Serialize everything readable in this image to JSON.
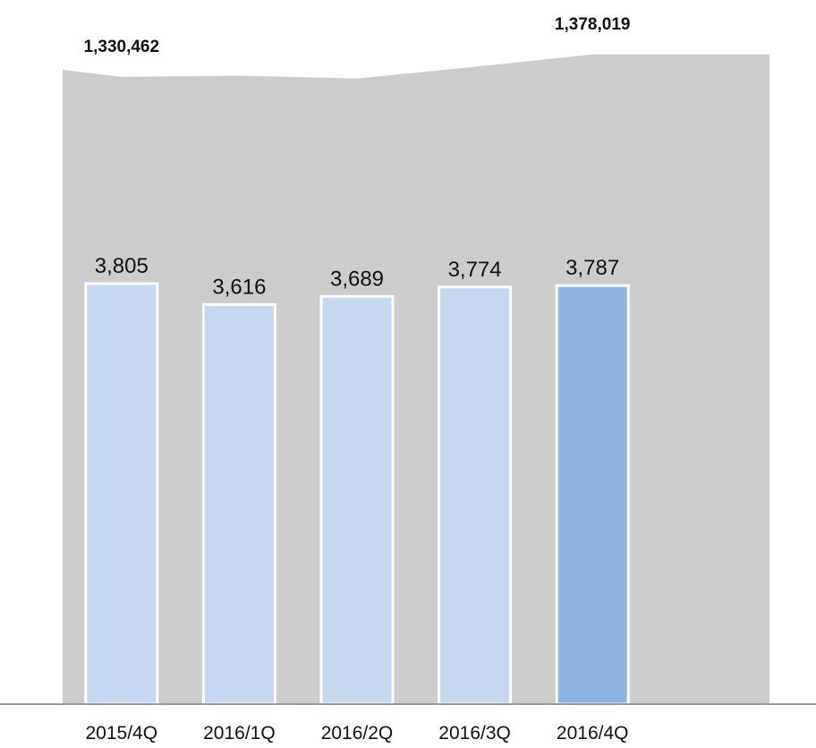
{
  "chart_data": {
    "type": "bar",
    "categories": [
      "2015/4Q",
      "2016/1Q",
      "2016/2Q",
      "2016/3Q",
      "2016/4Q"
    ],
    "series": [
      {
        "type": "area",
        "values": [
          1330462,
          1333000,
          1327000,
          1352000,
          1378019
        ],
        "labels": [
          "1,330,462",
          "",
          "",
          "",
          "1,378,019"
        ],
        "color": "#cccccc"
      },
      {
        "type": "bar",
        "values": [
          3805,
          3616,
          3689,
          3774,
          3787
        ],
        "labels": [
          "3,805",
          "3,616",
          "3,689",
          "3,774",
          "3,787"
        ],
        "colors": [
          "#c6d8ef",
          "#c6d8ef",
          "#c6d8ef",
          "#c6d8ef",
          "#8eb3e1"
        ]
      }
    ],
    "area_ylim": [
      0,
      1410000
    ],
    "bar_ylim": [
      0,
      5400
    ],
    "grid": false,
    "legend": "none",
    "axis_color": "#999999"
  }
}
